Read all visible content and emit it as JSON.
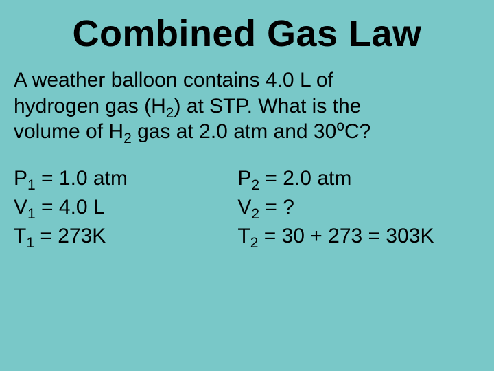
{
  "background_color": "#79c8c8",
  "text_color": "#000000",
  "font_family": "Arial",
  "title": {
    "text": "Combined Gas Law",
    "fontsize": 54,
    "weight": "bold",
    "align": "center"
  },
  "problem": {
    "fontsize": 30,
    "line1": "A weather balloon contains 4.0 L of",
    "line2_pre": "hydrogen gas (H",
    "line2_sub": "2",
    "line2_post": ") at STP. What is the",
    "line3_pre": "volume of H",
    "line3_sub": "2",
    "line3_mid": " gas at 2.0 atm and 30",
    "line3_sup": "o",
    "line3_post": "C?"
  },
  "values": {
    "fontsize": 30,
    "left": {
      "p1": {
        "label_pre": "P",
        "sub": "1",
        "label_post": " = 1.0 atm"
      },
      "v1": {
        "label_pre": "V",
        "sub": "1",
        "label_post": " = 4.0 L"
      },
      "t1": {
        "label_pre": "T",
        "sub": "1",
        "label_post": " = 273K"
      }
    },
    "right": {
      "p2": {
        "label_pre": "P",
        "sub": "2",
        "label_post": " =  2.0 atm"
      },
      "v2": {
        "label_pre": "V",
        "sub": "2",
        "label_post": " = ?"
      },
      "t2": {
        "label_pre": "T",
        "sub": "2",
        "label_post": " = 30 + 273 = 303K"
      }
    }
  }
}
